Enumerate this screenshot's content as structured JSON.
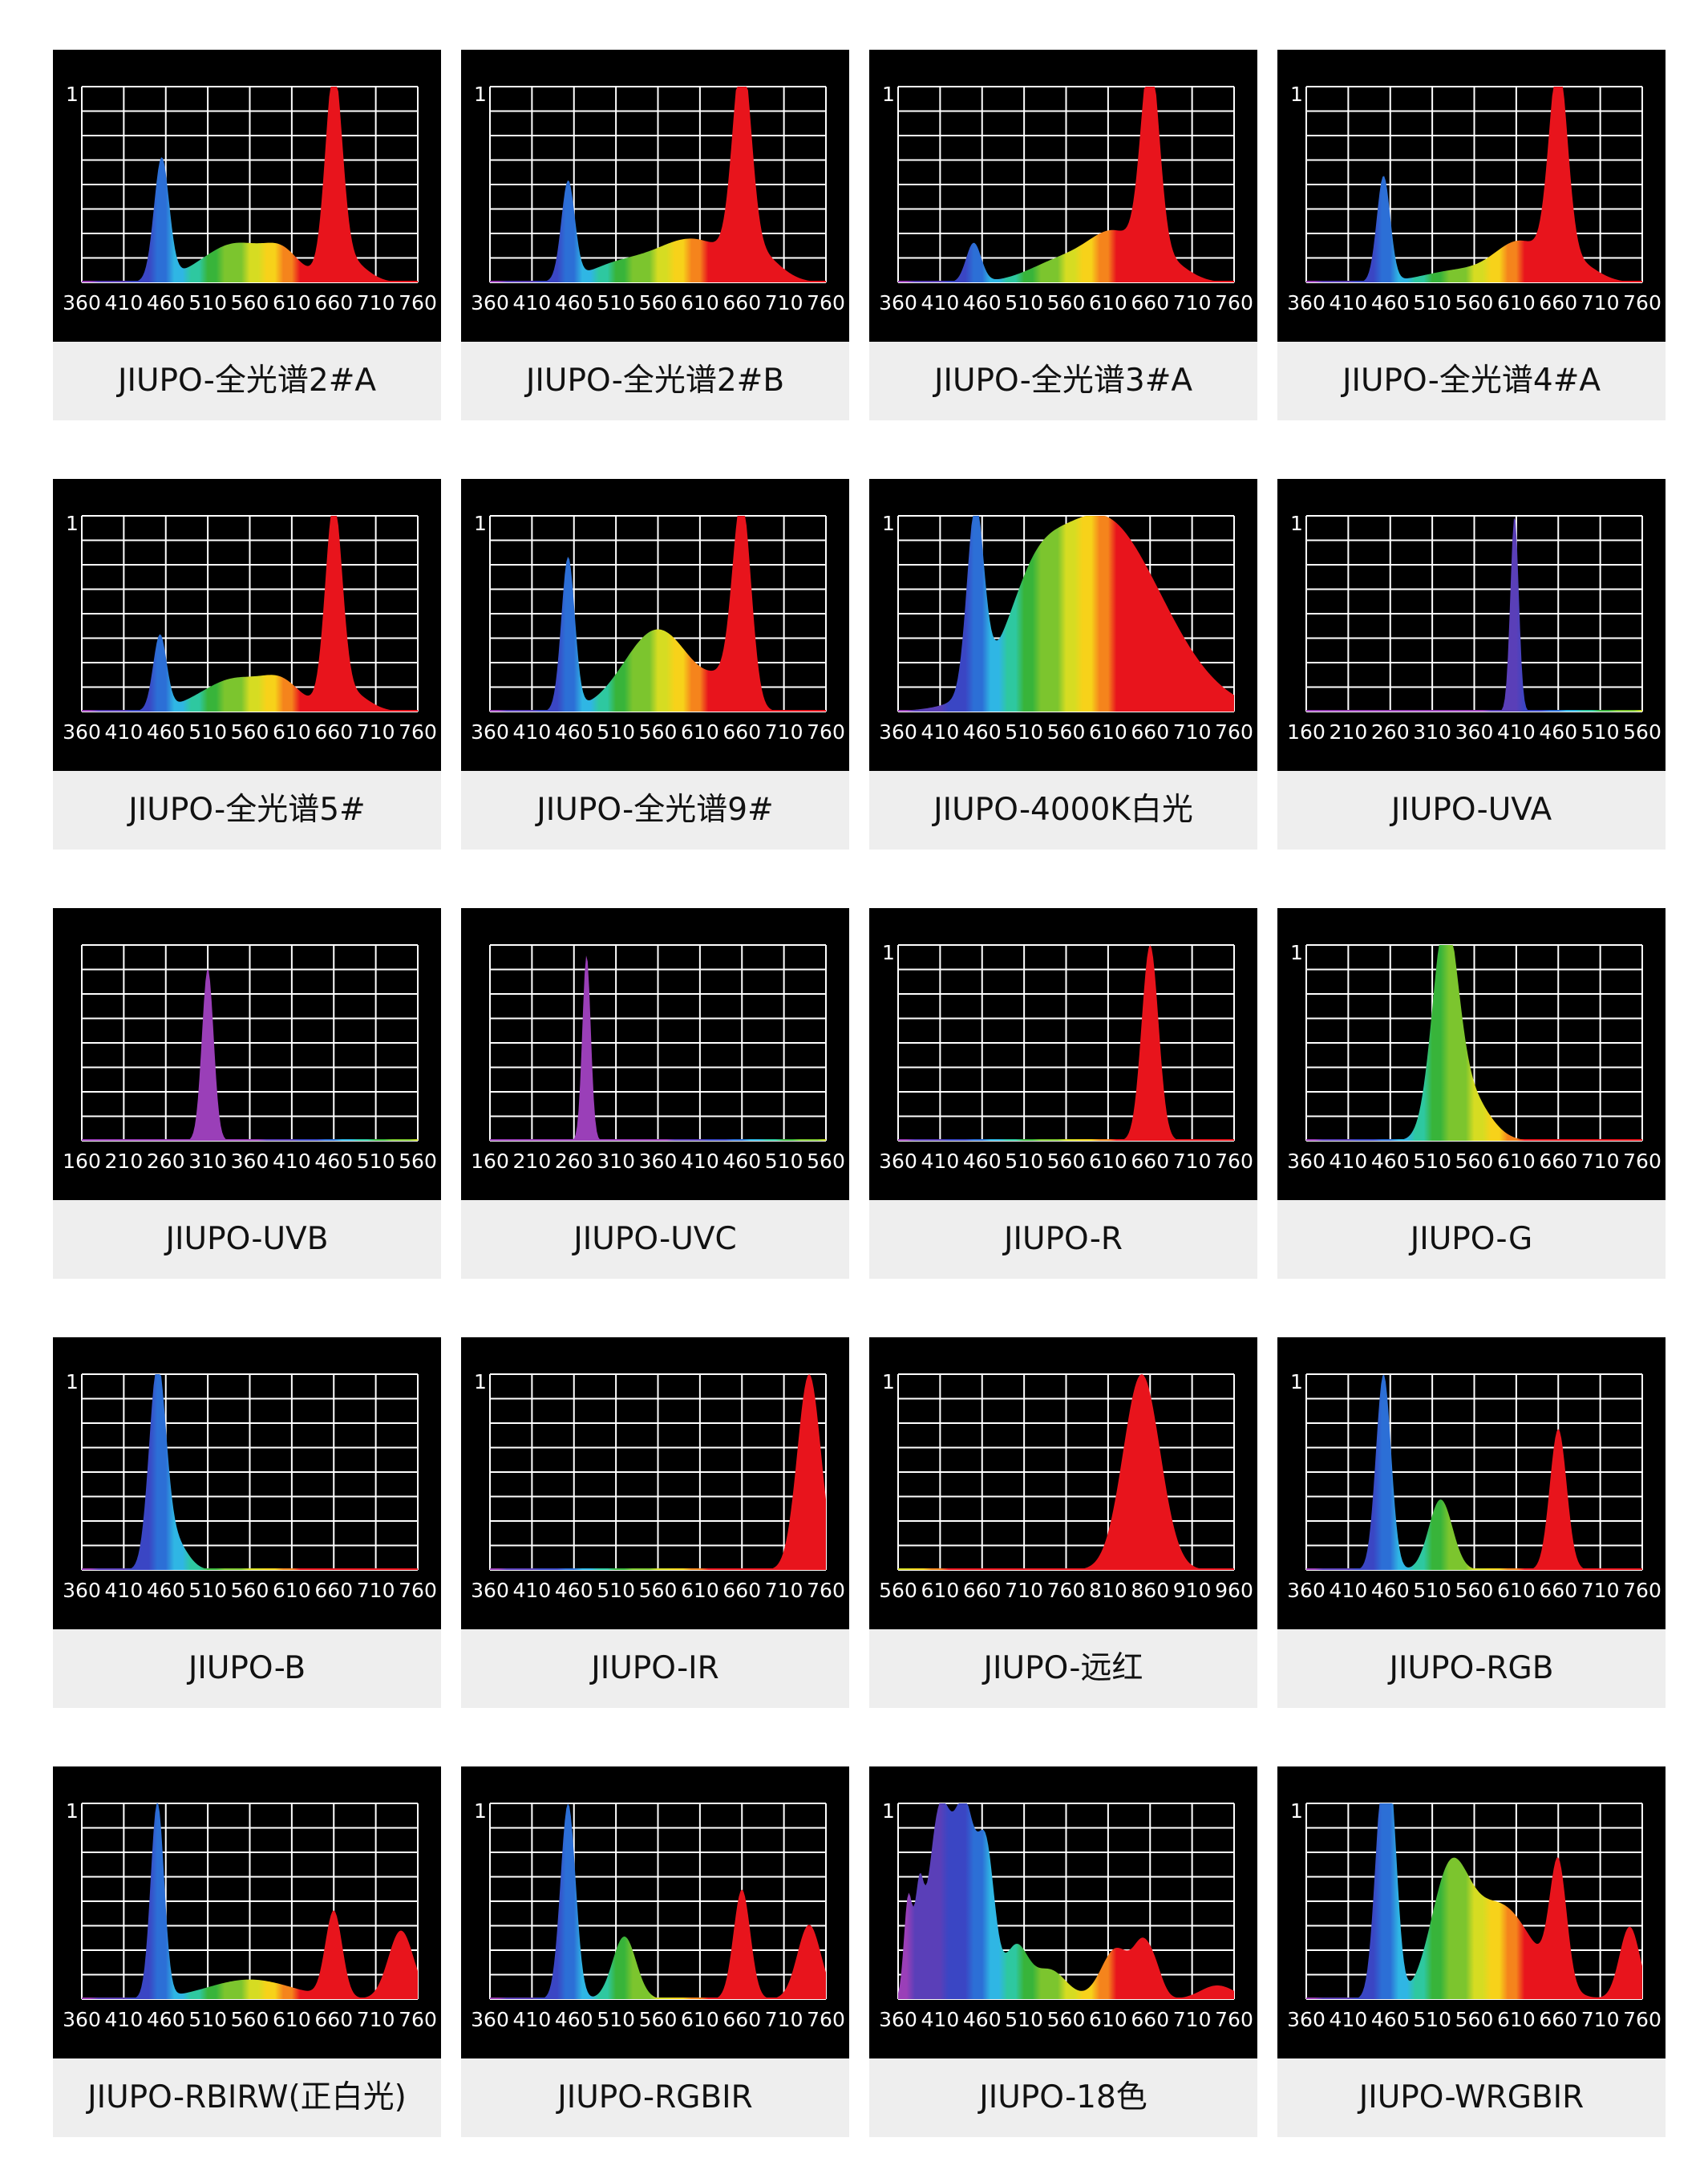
{
  "colors": {
    "panel_background": "#000000",
    "caption_background": "#eeeeee",
    "grid": "#ffffff"
  },
  "chart_data": [
    {
      "type": "area",
      "title": "JIUPO-全光谱2#A",
      "y_label": "1",
      "x_ticks": [
        360,
        410,
        460,
        510,
        560,
        610,
        660,
        710,
        760
      ],
      "xlim": [
        360,
        760
      ],
      "ylim": [
        0,
        1
      ],
      "peaks": [
        {
          "x": 455,
          "y": 0.62,
          "w": 9
        },
        {
          "x": 545,
          "y": 0.2,
          "w": 42
        },
        {
          "x": 600,
          "y": 0.1,
          "w": 20
        },
        {
          "x": 660,
          "y": 1.0,
          "w": 10
        },
        {
          "x": 675,
          "y": 0.12,
          "w": 22
        }
      ]
    },
    {
      "type": "area",
      "title": "JIUPO-全光谱2#B",
      "y_label": "1",
      "x_ticks": [
        360,
        410,
        460,
        510,
        560,
        610,
        660,
        710,
        760
      ],
      "xlim": [
        360,
        760
      ],
      "ylim": [
        0,
        1
      ],
      "peaks": [
        {
          "x": 453,
          "y": 0.5,
          "w": 8
        },
        {
          "x": 510,
          "y": 0.08,
          "w": 35
        },
        {
          "x": 600,
          "y": 0.22,
          "w": 45
        },
        {
          "x": 660,
          "y": 1.0,
          "w": 11
        },
        {
          "x": 680,
          "y": 0.12,
          "w": 25
        }
      ]
    },
    {
      "type": "area",
      "title": "JIUPO-全光谱3#A",
      "y_label": "1",
      "x_ticks": [
        360,
        410,
        460,
        510,
        560,
        610,
        660,
        710,
        760
      ],
      "xlim": [
        360,
        760
      ],
      "ylim": [
        0,
        1
      ],
      "peaks": [
        {
          "x": 450,
          "y": 0.2,
          "w": 9
        },
        {
          "x": 560,
          "y": 0.12,
          "w": 40
        },
        {
          "x": 620,
          "y": 0.22,
          "w": 30
        },
        {
          "x": 660,
          "y": 1.0,
          "w": 11
        },
        {
          "x": 680,
          "y": 0.1,
          "w": 25
        }
      ]
    },
    {
      "type": "area",
      "title": "JIUPO-全光谱4#A",
      "y_label": "1",
      "x_ticks": [
        360,
        410,
        460,
        510,
        560,
        610,
        660,
        710,
        760
      ],
      "xlim": [
        360,
        760
      ],
      "ylim": [
        0,
        1
      ],
      "peaks": [
        {
          "x": 452,
          "y": 0.54,
          "w": 8
        },
        {
          "x": 540,
          "y": 0.06,
          "w": 40
        },
        {
          "x": 615,
          "y": 0.2,
          "w": 30
        },
        {
          "x": 660,
          "y": 1.0,
          "w": 11
        },
        {
          "x": 680,
          "y": 0.1,
          "w": 25
        }
      ]
    },
    {
      "type": "area",
      "title": "JIUPO-全光谱5#",
      "y_label": "1",
      "x_ticks": [
        360,
        410,
        460,
        510,
        560,
        610,
        660,
        710,
        760
      ],
      "xlim": [
        360,
        760
      ],
      "ylim": [
        0,
        1
      ],
      "peaks": [
        {
          "x": 453,
          "y": 0.38,
          "w": 8
        },
        {
          "x": 545,
          "y": 0.17,
          "w": 42
        },
        {
          "x": 600,
          "y": 0.1,
          "w": 22
        },
        {
          "x": 660,
          "y": 1.0,
          "w": 10
        },
        {
          "x": 678,
          "y": 0.1,
          "w": 22
        }
      ]
    },
    {
      "type": "area",
      "title": "JIUPO-全光谱9#",
      "y_label": "1",
      "x_ticks": [
        360,
        410,
        460,
        510,
        560,
        610,
        660,
        710,
        760
      ],
      "xlim": [
        360,
        760
      ],
      "ylim": [
        0,
        1
      ],
      "peaks": [
        {
          "x": 453,
          "y": 0.78,
          "w": 8
        },
        {
          "x": 560,
          "y": 0.42,
          "w": 40
        },
        {
          "x": 660,
          "y": 1.0,
          "w": 11
        },
        {
          "x": 640,
          "y": 0.12,
          "w": 20
        }
      ]
    },
    {
      "type": "area",
      "title": "JIUPO-4000K白光",
      "y_label": "1",
      "x_ticks": [
        360,
        410,
        460,
        510,
        560,
        610,
        660,
        710,
        760
      ],
      "xlim": [
        360,
        760
      ],
      "ylim": [
        0,
        1
      ],
      "peaks": [
        {
          "x": 452,
          "y": 0.93,
          "w": 10
        },
        {
          "x": 600,
          "y": 1.0,
          "w": 72
        },
        {
          "x": 520,
          "y": 0.25,
          "w": 30
        }
      ]
    },
    {
      "type": "area",
      "title": "JIUPO-UVA",
      "y_label": "1",
      "x_ticks": [
        160,
        210,
        260,
        310,
        360,
        410,
        460,
        510,
        560
      ],
      "xlim": [
        160,
        560
      ],
      "ylim": [
        0,
        1
      ],
      "peaks": [
        {
          "x": 408,
          "y": 1.0,
          "w": 5
        }
      ]
    },
    {
      "type": "area",
      "title": "JIUPO-UVB",
      "y_label": "",
      "x_ticks": [
        160,
        210,
        260,
        310,
        360,
        410,
        460,
        510,
        560
      ],
      "xlim": [
        160,
        560
      ],
      "ylim": [
        0,
        1
      ],
      "peaks": [
        {
          "x": 310,
          "y": 0.88,
          "w": 7
        }
      ]
    },
    {
      "type": "area",
      "title": "JIUPO-UVC",
      "y_label": "",
      "x_ticks": [
        160,
        210,
        260,
        310,
        360,
        410,
        460,
        510,
        560
      ],
      "xlim": [
        160,
        560
      ],
      "ylim": [
        0,
        1
      ],
      "peaks": [
        {
          "x": 275,
          "y": 0.95,
          "w": 5
        }
      ]
    },
    {
      "type": "area",
      "title": "JIUPO-R",
      "y_label": "1",
      "x_ticks": [
        360,
        410,
        460,
        510,
        560,
        610,
        660,
        710,
        760
      ],
      "xlim": [
        360,
        760
      ],
      "ylim": [
        0,
        1
      ],
      "peaks": [
        {
          "x": 660,
          "y": 1.0,
          "w": 10
        }
      ]
    },
    {
      "type": "area",
      "title": "JIUPO-G",
      "y_label": "1",
      "x_ticks": [
        360,
        410,
        460,
        510,
        560,
        610,
        660,
        710,
        760
      ],
      "xlim": [
        360,
        760
      ],
      "ylim": [
        0,
        1
      ],
      "peaks": [
        {
          "x": 525,
          "y": 1.0,
          "w": 15
        },
        {
          "x": 550,
          "y": 0.25,
          "w": 25
        }
      ]
    },
    {
      "type": "area",
      "title": "JIUPO-B",
      "y_label": "1",
      "x_ticks": [
        360,
        410,
        460,
        510,
        560,
        610,
        660,
        710,
        760
      ],
      "xlim": [
        360,
        760
      ],
      "ylim": [
        0,
        1
      ],
      "peaks": [
        {
          "x": 450,
          "y": 1.0,
          "w": 10
        },
        {
          "x": 470,
          "y": 0.15,
          "w": 15
        }
      ]
    },
    {
      "type": "area",
      "title": "JIUPO-IR",
      "y_label": "1",
      "x_ticks": [
        360,
        410,
        460,
        510,
        560,
        610,
        660,
        710,
        760
      ],
      "xlim": [
        360,
        760
      ],
      "ylim": [
        0,
        1
      ],
      "peaks": [
        {
          "x": 740,
          "y": 1.0,
          "w": 14
        }
      ]
    },
    {
      "type": "area",
      "title": "JIUPO-远红",
      "y_label": "1",
      "x_ticks": [
        560,
        610,
        660,
        710,
        760,
        810,
        860,
        910,
        960
      ],
      "xlim": [
        560,
        960
      ],
      "ylim": [
        0,
        1
      ],
      "peaks": [
        {
          "x": 850,
          "y": 1.0,
          "w": 22
        }
      ]
    },
    {
      "type": "area",
      "title": "JIUPO-RGB",
      "y_label": "1",
      "x_ticks": [
        360,
        410,
        460,
        510,
        560,
        610,
        660,
        710,
        760
      ],
      "xlim": [
        360,
        760
      ],
      "ylim": [
        0,
        1
      ],
      "peaks": [
        {
          "x": 452,
          "y": 1.0,
          "w": 9
        },
        {
          "x": 520,
          "y": 0.36,
          "w": 14
        },
        {
          "x": 660,
          "y": 0.72,
          "w": 10
        }
      ]
    },
    {
      "type": "area",
      "title": "JIUPO-RBIRW(正白光)",
      "y_label": "1",
      "x_ticks": [
        360,
        410,
        460,
        510,
        560,
        610,
        660,
        710,
        760
      ],
      "xlim": [
        360,
        760
      ],
      "ylim": [
        0,
        1
      ],
      "peaks": [
        {
          "x": 450,
          "y": 1.0,
          "w": 8
        },
        {
          "x": 560,
          "y": 0.1,
          "w": 50
        },
        {
          "x": 660,
          "y": 0.44,
          "w": 10
        },
        {
          "x": 740,
          "y": 0.35,
          "w": 15
        }
      ]
    },
    {
      "type": "area",
      "title": "JIUPO-RGBIR",
      "y_label": "1",
      "x_ticks": [
        360,
        410,
        460,
        510,
        560,
        610,
        660,
        710,
        760
      ],
      "xlim": [
        360,
        760
      ],
      "ylim": [
        0,
        1
      ],
      "peaks": [
        {
          "x": 453,
          "y": 1.0,
          "w": 9
        },
        {
          "x": 520,
          "y": 0.32,
          "w": 14
        },
        {
          "x": 660,
          "y": 0.56,
          "w": 10
        },
        {
          "x": 740,
          "y": 0.38,
          "w": 14
        }
      ]
    },
    {
      "type": "area",
      "title": "JIUPO-18色",
      "y_label": "1",
      "x_ticks": [
        360,
        410,
        460,
        510,
        560,
        610,
        660,
        710,
        760
      ],
      "xlim": [
        360,
        760
      ],
      "ylim": [
        0,
        1
      ],
      "peaks": [
        {
          "x": 372,
          "y": 0.5,
          "w": 5
        },
        {
          "x": 385,
          "y": 0.42,
          "w": 5
        },
        {
          "x": 410,
          "y": 0.97,
          "w": 14
        },
        {
          "x": 440,
          "y": 0.9,
          "w": 12
        },
        {
          "x": 465,
          "y": 0.72,
          "w": 10
        },
        {
          "x": 500,
          "y": 0.26,
          "w": 14
        },
        {
          "x": 540,
          "y": 0.15,
          "w": 20
        },
        {
          "x": 620,
          "y": 0.26,
          "w": 18
        },
        {
          "x": 650,
          "y": 0.2,
          "w": 10
        },
        {
          "x": 665,
          "y": 0.15,
          "w": 10
        },
        {
          "x": 740,
          "y": 0.07,
          "w": 20
        }
      ]
    },
    {
      "type": "area",
      "title": "JIUPO-WRGBIR",
      "y_label": "1",
      "x_ticks": [
        360,
        410,
        460,
        510,
        560,
        610,
        660,
        710,
        760
      ],
      "xlim": [
        360,
        760
      ],
      "ylim": [
        0,
        1
      ],
      "peaks": [
        {
          "x": 450,
          "y": 0.95,
          "w": 9
        },
        {
          "x": 462,
          "y": 0.7,
          "w": 8
        },
        {
          "x": 530,
          "y": 0.55,
          "w": 22
        },
        {
          "x": 590,
          "y": 0.48,
          "w": 40
        },
        {
          "x": 660,
          "y": 0.62,
          "w": 10
        },
        {
          "x": 745,
          "y": 0.37,
          "w": 12
        }
      ]
    }
  ]
}
